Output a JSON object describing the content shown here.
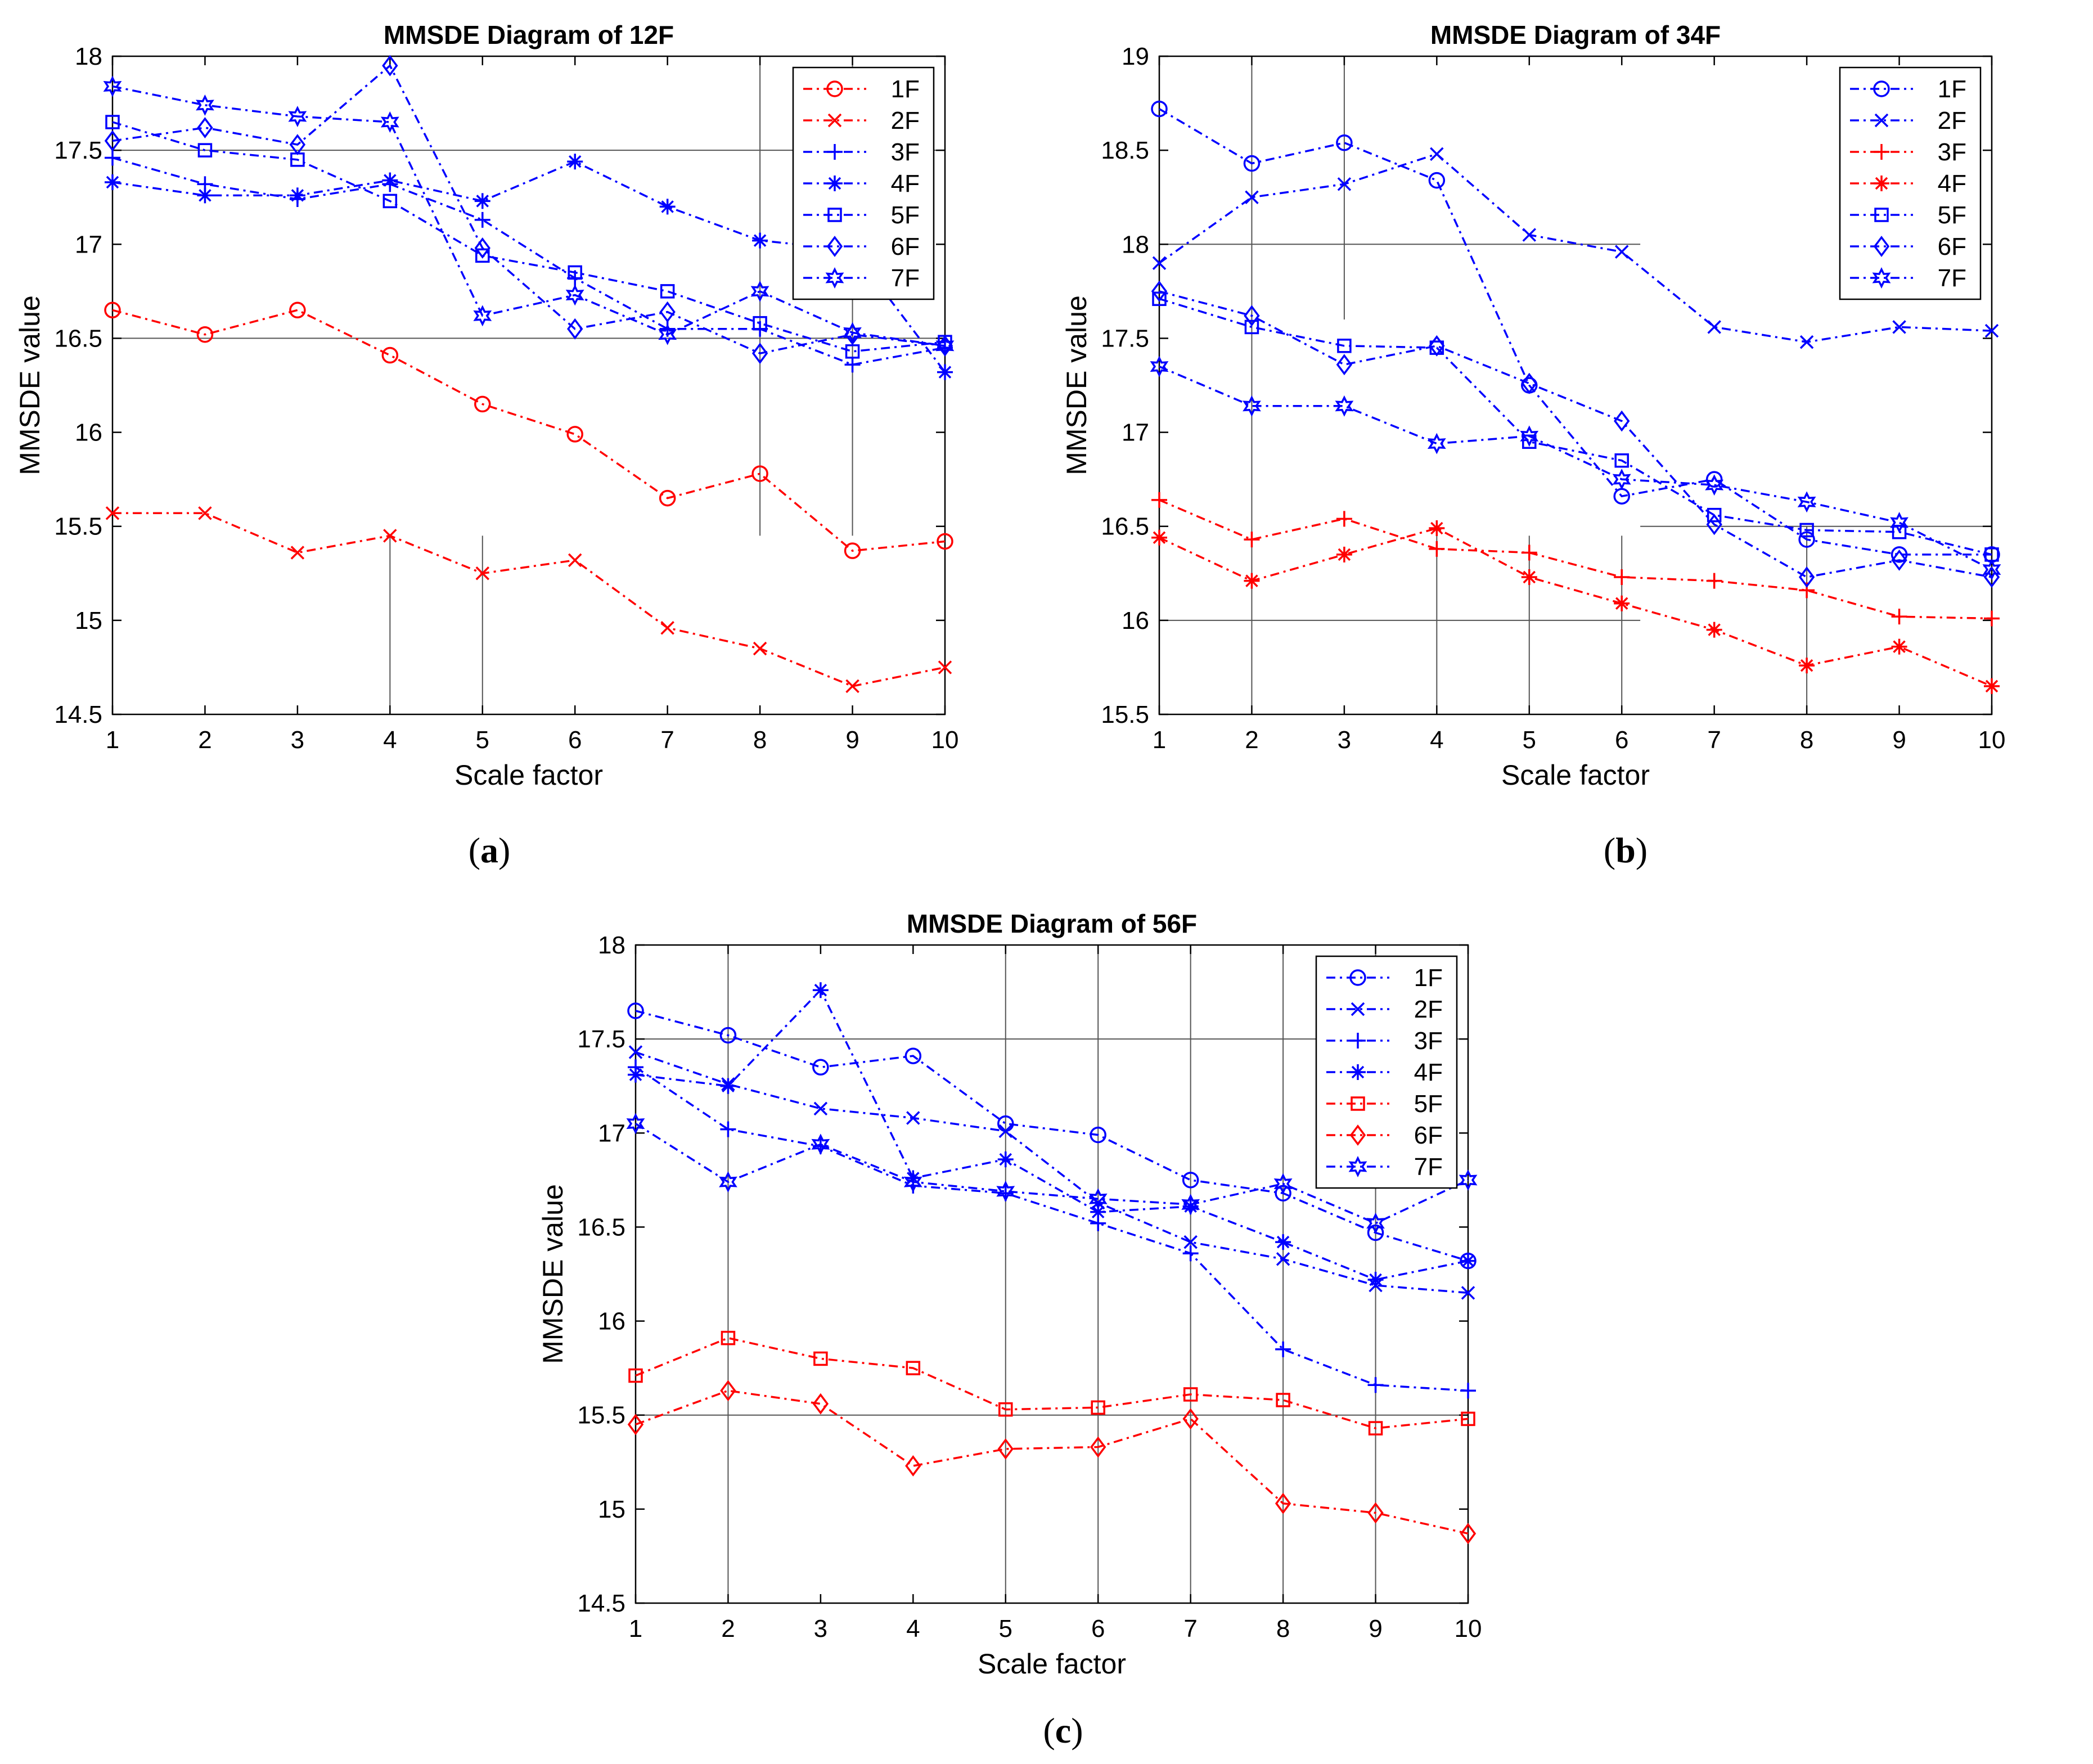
{
  "colors": {
    "blue": "#0000FF",
    "red": "#FF0000",
    "axis": "#000000",
    "grid": "#555555"
  },
  "captions": {
    "a": "a",
    "b": "b",
    "c": "c"
  },
  "chart_data": [
    {
      "type": "line",
      "title": "MMSDE Diagram of 12F",
      "xlabel": "Scale factor",
      "ylabel": "MMSDE value",
      "x": [
        1,
        2,
        3,
        4,
        5,
        6,
        7,
        8,
        9,
        10
      ],
      "xticks": [
        "1",
        "2",
        "3",
        "4",
        "5",
        "6",
        "7",
        "8",
        "9",
        "10"
      ],
      "ylim": [
        14.5,
        18
      ],
      "yticks": [
        "14.5",
        "15",
        "15.5",
        "16",
        "16.5",
        "17",
        "17.5",
        "18"
      ],
      "legend": "top-right",
      "series": [
        {
          "name": "1F",
          "color": "red",
          "marker": "circle",
          "values": [
            16.65,
            16.52,
            16.65,
            16.41,
            16.15,
            15.99,
            15.65,
            15.78,
            15.37,
            15.42
          ]
        },
        {
          "name": "2F",
          "color": "red",
          "marker": "x",
          "values": [
            15.57,
            15.57,
            15.36,
            15.45,
            15.25,
            15.32,
            14.96,
            14.85,
            14.65,
            14.75
          ]
        },
        {
          "name": "3F",
          "color": "blue",
          "marker": "plus",
          "values": [
            17.46,
            17.32,
            17.24,
            17.32,
            17.13,
            16.82,
            16.55,
            16.55,
            16.36,
            16.45
          ]
        },
        {
          "name": "4F",
          "color": "blue",
          "marker": "asterisk",
          "values": [
            17.33,
            17.26,
            17.26,
            17.34,
            17.23,
            17.44,
            17.2,
            17.02,
            16.97,
            16.32
          ]
        },
        {
          "name": "5F",
          "color": "blue",
          "marker": "square",
          "values": [
            17.65,
            17.5,
            17.45,
            17.23,
            16.94,
            16.85,
            16.75,
            16.58,
            16.43,
            16.48
          ]
        },
        {
          "name": "6F",
          "color": "blue",
          "marker": "diamond",
          "values": [
            17.55,
            17.62,
            17.53,
            17.95,
            16.98,
            16.55,
            16.64,
            16.42,
            16.52,
            16.46
          ]
        },
        {
          "name": "7F",
          "color": "blue",
          "marker": "hexagram",
          "values": [
            17.84,
            17.74,
            17.68,
            17.65,
            16.62,
            16.73,
            16.52,
            16.75,
            16.53,
            16.46
          ]
        }
      ],
      "grid_segments": [
        {
          "x1": 1,
          "y1": 17.5,
          "x2": 10,
          "y2": 17.5
        },
        {
          "x1": 1,
          "y1": 16.5,
          "x2": 10,
          "y2": 16.5
        },
        {
          "x1": 4,
          "y1": 15.45,
          "x2": 4,
          "y2": 14.5
        },
        {
          "x1": 5,
          "y1": 15.45,
          "x2": 5,
          "y2": 14.5
        },
        {
          "x1": 8,
          "y1": 18,
          "x2": 8,
          "y2": 15.45
        },
        {
          "x1": 9,
          "y1": 18,
          "x2": 9,
          "y2": 15.45
        }
      ]
    },
    {
      "type": "line",
      "title": "MMSDE Diagram of 34F",
      "xlabel": "Scale factor",
      "ylabel": "MMSDE value",
      "x": [
        1,
        2,
        3,
        4,
        5,
        6,
        7,
        8,
        9,
        10
      ],
      "xticks": [
        "1",
        "2",
        "3",
        "4",
        "5",
        "6",
        "7",
        "8",
        "9",
        "10"
      ],
      "ylim": [
        15.5,
        19
      ],
      "yticks": [
        "15.5",
        "16",
        "16.5",
        "17",
        "17.5",
        "18",
        "18.5",
        "19"
      ],
      "legend": "top-right",
      "series": [
        {
          "name": "1F",
          "color": "blue",
          "marker": "circle",
          "values": [
            18.72,
            18.43,
            18.54,
            18.34,
            17.25,
            16.66,
            16.75,
            16.43,
            16.35,
            16.35
          ]
        },
        {
          "name": "2F",
          "color": "blue",
          "marker": "x",
          "values": [
            17.9,
            18.25,
            18.32,
            18.48,
            18.05,
            17.96,
            17.56,
            17.48,
            17.56,
            17.54
          ]
        },
        {
          "name": "3F",
          "color": "red",
          "marker": "plus",
          "values": [
            16.64,
            16.43,
            16.54,
            16.38,
            16.36,
            16.23,
            16.21,
            16.16,
            16.02,
            16.01
          ]
        },
        {
          "name": "4F",
          "color": "red",
          "marker": "asterisk",
          "values": [
            16.44,
            16.21,
            16.35,
            16.49,
            16.23,
            16.09,
            15.95,
            15.76,
            15.86,
            15.65
          ]
        },
        {
          "name": "5F",
          "color": "blue",
          "marker": "square",
          "values": [
            17.71,
            17.56,
            17.46,
            17.45,
            16.95,
            16.85,
            16.56,
            16.48,
            16.47,
            16.35
          ]
        },
        {
          "name": "6F",
          "color": "blue",
          "marker": "diamond",
          "values": [
            17.75,
            17.62,
            17.36,
            17.46,
            17.26,
            17.06,
            16.51,
            16.23,
            16.32,
            16.23
          ]
        },
        {
          "name": "7F",
          "color": "blue",
          "marker": "hexagram",
          "values": [
            17.35,
            17.14,
            17.14,
            16.94,
            16.98,
            16.75,
            16.72,
            16.63,
            16.52,
            16.27
          ]
        }
      ],
      "grid_segments": [
        {
          "x1": 1,
          "y1": 18,
          "x2": 6.2,
          "y2": 18
        },
        {
          "x1": 1,
          "y1": 16,
          "x2": 6.2,
          "y2": 16
        },
        {
          "x1": 6.2,
          "y1": 16.5,
          "x2": 10,
          "y2": 16.5
        },
        {
          "x1": 2,
          "y1": 19,
          "x2": 2,
          "y2": 15.5
        },
        {
          "x1": 3,
          "y1": 19,
          "x2": 3,
          "y2": 17.6
        },
        {
          "x1": 4,
          "y1": 16.45,
          "x2": 4,
          "y2": 15.5
        },
        {
          "x1": 5,
          "y1": 16.45,
          "x2": 5,
          "y2": 15.5
        },
        {
          "x1": 6,
          "y1": 16.45,
          "x2": 6,
          "y2": 15.5
        },
        {
          "x1": 8,
          "y1": 16.5,
          "x2": 8,
          "y2": 15.5
        }
      ]
    },
    {
      "type": "line",
      "title": "MMSDE Diagram of 56F",
      "xlabel": "Scale factor",
      "ylabel": "MMSDE value",
      "x": [
        1,
        2,
        3,
        4,
        5,
        6,
        7,
        8,
        9,
        10
      ],
      "xticks": [
        "1",
        "2",
        "3",
        "4",
        "5",
        "6",
        "7",
        "8",
        "9",
        "10"
      ],
      "ylim": [
        14.5,
        18
      ],
      "yticks": [
        "14.5",
        "15",
        "15.5",
        "16",
        "16.5",
        "17",
        "17.5",
        "18"
      ],
      "legend": "top-right",
      "series": [
        {
          "name": "1F",
          "color": "blue",
          "marker": "circle",
          "values": [
            17.65,
            17.52,
            17.35,
            17.41,
            17.05,
            16.99,
            16.75,
            16.68,
            16.47,
            16.32
          ]
        },
        {
          "name": "2F",
          "color": "blue",
          "marker": "x",
          "values": [
            17.43,
            17.26,
            17.13,
            17.08,
            17.01,
            16.63,
            16.42,
            16.33,
            16.19,
            16.15
          ]
        },
        {
          "name": "3F",
          "color": "blue",
          "marker": "plus",
          "values": [
            17.35,
            17.02,
            16.93,
            16.72,
            16.68,
            16.52,
            16.36,
            15.85,
            15.66,
            15.63
          ]
        },
        {
          "name": "4F",
          "color": "blue",
          "marker": "asterisk",
          "values": [
            17.31,
            17.25,
            17.76,
            16.76,
            16.86,
            16.58,
            16.61,
            16.42,
            16.22,
            16.32
          ]
        },
        {
          "name": "5F",
          "color": "red",
          "marker": "square",
          "values": [
            15.71,
            15.91,
            15.8,
            15.75,
            15.53,
            15.54,
            15.61,
            15.58,
            15.43,
            15.48
          ]
        },
        {
          "name": "6F",
          "color": "red",
          "marker": "diamond",
          "values": [
            15.45,
            15.63,
            15.56,
            15.23,
            15.32,
            15.33,
            15.48,
            15.03,
            14.98,
            14.87
          ]
        },
        {
          "name": "7F",
          "color": "blue",
          "marker": "hexagram",
          "values": [
            17.05,
            16.74,
            16.94,
            16.74,
            16.69,
            16.65,
            16.62,
            16.73,
            16.52,
            16.75
          ]
        }
      ],
      "grid_segments": [
        {
          "x1": 1,
          "y1": 17.5,
          "x2": 10,
          "y2": 17.5
        },
        {
          "x1": 1,
          "y1": 15.5,
          "x2": 10,
          "y2": 15.5
        },
        {
          "x1": 2,
          "y1": 18,
          "x2": 2,
          "y2": 14.5
        },
        {
          "x1": 5,
          "y1": 18,
          "x2": 5,
          "y2": 14.5
        },
        {
          "x1": 6,
          "y1": 18,
          "x2": 6,
          "y2": 14.5
        },
        {
          "x1": 7,
          "y1": 18,
          "x2": 7,
          "y2": 14.5
        },
        {
          "x1": 8,
          "y1": 18,
          "x2": 8,
          "y2": 14.5
        },
        {
          "x1": 9,
          "y1": 18,
          "x2": 9,
          "y2": 14.5
        }
      ]
    }
  ]
}
